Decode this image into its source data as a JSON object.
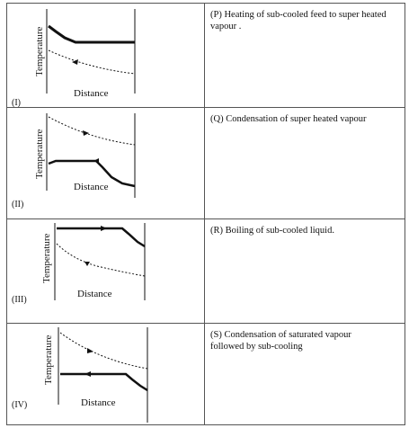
{
  "rows": [
    {
      "id": "I",
      "roman": "(I)",
      "ylabel": "Temperature",
      "xlabel": "Distance",
      "description": "(P)  Heating of sub-cooled feed to super heated  vapour ."
    },
    {
      "id": "II",
      "roman": "(II)",
      "ylabel": "Temperature",
      "xlabel": "Distance",
      "description": "(Q)  Condensation of super heated vapour"
    },
    {
      "id": "III",
      "roman": "(III)",
      "ylabel": "Temperature",
      "xlabel": "Distance",
      "description": "(R)  Boiling of sub-cooled liquid."
    },
    {
      "id": "IV",
      "roman": "(IV)",
      "ylabel": "Temperature",
      "xlabel": "Distance",
      "description": "(S)  Condensation of saturated vapour\nfollowed by sub-cooling"
    }
  ],
  "colors": {
    "border": "#555555",
    "line": "#111111"
  }
}
